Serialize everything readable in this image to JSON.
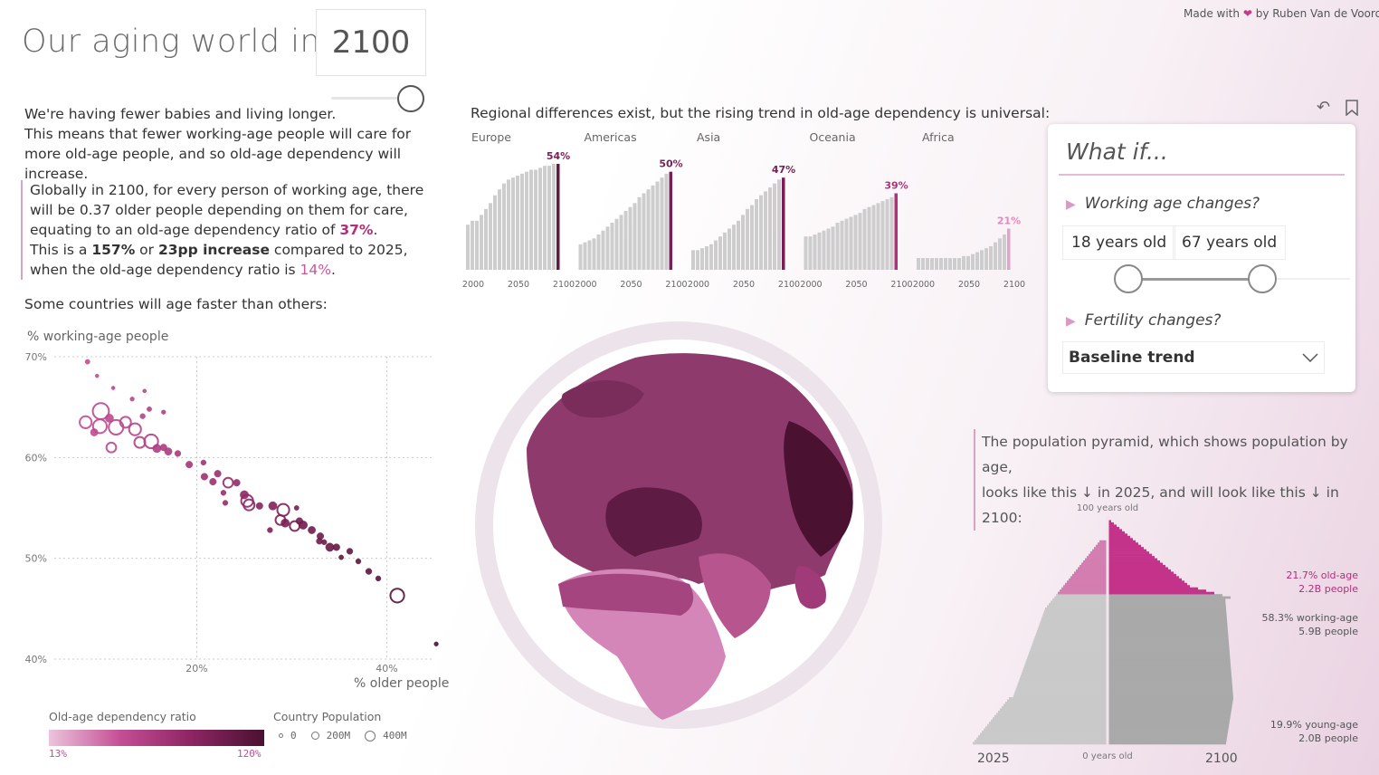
{
  "header": {
    "title": "Our aging world in",
    "year": "2100",
    "credit_prefix": "Made with",
    "credit_suffix": "by Ruben Van de Voorde"
  },
  "year_slider": {
    "value": 2100
  },
  "intro": {
    "line1": "We're having fewer babies and living longer.",
    "line2": "This means that fewer working-age people will care for more old-age people, and so old-age dependency will increase."
  },
  "stat": {
    "p1a": "Globally in 2100, for every person of working age, there will be 0.37 older people depending on them for care, equating to an old-age dependency ratio of ",
    "ratio": "37%",
    "p1b": ".",
    "p2a": "This is a ",
    "pct_increase": "157%",
    "p2b": " or ",
    "pp_increase": "23pp increase",
    "p2c": " compared to 2025, when the old-age dependency ratio is ",
    "ratio_2025": "14%",
    "p2d": "."
  },
  "scatter_intro": "Some countries will age faster than others:",
  "regional_title": "Regional differences exist, but the rising trend in old-age dependency is universal:",
  "pyramid_text": {
    "line1": "The population pyramid, which shows population by age,",
    "line2": "looks like this ↓ in 2025, and will look like this ↓ in 2100:"
  },
  "whatif": {
    "title": "What if...",
    "q1": "Working age changes?",
    "age_min": "18 years old",
    "age_max": "67 years old",
    "q2": "Fertility changes?",
    "fertility_selected": "Baseline trend"
  },
  "legend": {
    "ratio_title": "Old-age dependency ratio",
    "ratio_min": "13%",
    "ratio_max": "120%",
    "pop_title": "Country Population",
    "pop_levels": [
      "0",
      "200M",
      "400M"
    ]
  },
  "colors": {
    "accent": "#b0307a",
    "dark": "#4a1131",
    "light": "#ecc4dc",
    "gray": "#c8c8c8"
  },
  "icons": [
    "heart-icon",
    "undo-icon",
    "bookmark-icon",
    "triangle-right-icon",
    "chevron-down-icon"
  ],
  "chart_data": [
    {
      "type": "bar",
      "title": "Regional differences exist, but the rising trend in old-age dependency is universal:",
      "categories": [
        2000,
        2005,
        2010,
        2015,
        2020,
        2025,
        2030,
        2035,
        2040,
        2045,
        2050,
        2055,
        2060,
        2065,
        2070,
        2075,
        2080,
        2085,
        2090,
        2095,
        2100
      ],
      "xticks": [
        "2000",
        "2050",
        "2100"
      ],
      "series": [
        {
          "name": "Europe",
          "label": "54%",
          "values": [
            23,
            25,
            25,
            28,
            31,
            34,
            38,
            41,
            44,
            46,
            47,
            48,
            49,
            50,
            51,
            51,
            52,
            53,
            53,
            54,
            54
          ]
        },
        {
          "name": "Americas",
          "label": "50%",
          "values": [
            13,
            14,
            15,
            16,
            18,
            20,
            22,
            24,
            26,
            28,
            30,
            32,
            34,
            37,
            39,
            41,
            43,
            45,
            47,
            49,
            50
          ]
        },
        {
          "name": "Asia",
          "label": "47%",
          "values": [
            10,
            10,
            11,
            12,
            13,
            15,
            17,
            19,
            21,
            23,
            25,
            28,
            31,
            33,
            36,
            38,
            40,
            42,
            44,
            46,
            47
          ]
        },
        {
          "name": "Oceania",
          "label": "39%",
          "values": [
            17,
            17,
            18,
            19,
            20,
            21,
            22,
            24,
            25,
            26,
            27,
            28,
            29,
            31,
            32,
            33,
            34,
            35,
            36,
            37,
            39
          ]
        },
        {
          "name": "Africa",
          "label": "21%",
          "values": [
            6,
            6,
            6,
            6,
            6,
            6,
            6,
            6,
            6,
            6,
            7,
            7,
            8,
            9,
            10,
            11,
            12,
            14,
            16,
            18,
            21
          ]
        }
      ],
      "ylim": [
        0,
        60
      ]
    },
    {
      "type": "scatter",
      "xlabel": "% older people",
      "ylabel": "% working-age people",
      "xlim": [
        5,
        45
      ],
      "ylim": [
        40,
        70
      ],
      "xticks": [
        "20%",
        "40%"
      ],
      "yticks": [
        "40%",
        "50%",
        "60%",
        "70%"
      ],
      "points": [
        [
          8.5,
          69.5,
          5,
          0.35
        ],
        [
          9.5,
          68.1,
          3,
          0.35
        ],
        [
          9.9,
          64.6,
          55,
          0.38
        ],
        [
          9.2,
          62.5,
          12,
          0.36
        ],
        [
          8.3,
          63.5,
          30,
          0.35
        ],
        [
          9.8,
          63.1,
          40,
          0.37
        ],
        [
          10.8,
          63.9,
          15,
          0.37
        ],
        [
          11.5,
          63.0,
          45,
          0.39
        ],
        [
          11.0,
          61.0,
          20,
          0.38
        ],
        [
          12.5,
          63.5,
          25,
          0.39
        ],
        [
          13.5,
          62.8,
          30,
          0.42
        ],
        [
          14.0,
          61.5,
          25,
          0.43
        ],
        [
          15.2,
          61.6,
          40,
          0.45
        ],
        [
          15.8,
          60.9,
          15,
          0.46
        ],
        [
          16.5,
          61.0,
          10,
          0.47
        ],
        [
          17.0,
          60.6,
          12,
          0.48
        ],
        [
          18.0,
          60.4,
          8,
          0.5
        ],
        [
          14.3,
          64.1,
          6,
          0.42
        ],
        [
          15.0,
          64.8,
          5,
          0.44
        ],
        [
          13.2,
          65.8,
          4,
          0.41
        ],
        [
          14.5,
          66.6,
          3,
          0.42
        ],
        [
          16.5,
          64.5,
          4,
          0.46
        ],
        [
          11.2,
          66.9,
          3,
          0.37
        ],
        [
          19.2,
          59.3,
          10,
          0.52
        ],
        [
          20.7,
          59.5,
          6,
          0.55
        ],
        [
          20.8,
          58.1,
          10,
          0.56
        ],
        [
          22.2,
          58.4,
          10,
          0.58
        ],
        [
          21.7,
          57.6,
          10,
          0.57
        ],
        [
          23.3,
          57.5,
          20,
          0.6
        ],
        [
          24.2,
          57.5,
          10,
          0.62
        ],
        [
          22.8,
          56.5,
          6,
          0.59
        ],
        [
          23.0,
          55.5,
          6,
          0.6
        ],
        [
          25.0,
          56.3,
          15,
          0.64
        ],
        [
          25.3,
          55.7,
          30,
          0.65
        ],
        [
          25.5,
          55.3,
          25,
          0.66
        ],
        [
          26.6,
          55.2,
          10,
          0.68
        ],
        [
          28.0,
          55.2,
          15,
          0.72
        ],
        [
          29.1,
          54.8,
          30,
          0.75
        ],
        [
          28.8,
          53.8,
          20,
          0.74
        ],
        [
          29.3,
          53.5,
          15,
          0.76
        ],
        [
          30.8,
          53.7,
          10,
          0.79
        ],
        [
          30.3,
          53.2,
          20,
          0.78
        ],
        [
          32.1,
          52.8,
          12,
          0.81
        ],
        [
          31.2,
          53.3,
          15,
          0.8
        ],
        [
          33.0,
          52.2,
          10,
          0.83
        ],
        [
          32.9,
          51.7,
          8,
          0.82
        ],
        [
          34.0,
          51.1,
          15,
          0.85
        ],
        [
          34.7,
          51.1,
          10,
          0.87
        ],
        [
          33.4,
          51.6,
          6,
          0.84
        ],
        [
          36.1,
          50.7,
          8,
          0.89
        ],
        [
          37.0,
          49.7,
          6,
          0.9
        ],
        [
          38.1,
          48.7,
          8,
          0.92
        ],
        [
          39.1,
          48.0,
          6,
          0.93
        ],
        [
          35.2,
          50.1,
          5,
          0.88
        ],
        [
          41.1,
          46.3,
          40,
          0.95
        ],
        [
          45.2,
          41.5,
          4,
          1.0
        ],
        [
          27.7,
          52.8,
          6,
          0.73
        ],
        [
          30.5,
          55.0,
          5,
          0.78
        ]
      ]
    },
    {
      "type": "bar",
      "title": "The population pyramid, which shows population by age,",
      "categories": [
        "2025",
        "2100"
      ],
      "axis_top": "100 years old",
      "axis_bottom": "0 years old",
      "segments_2100": [
        {
          "name": "old-age",
          "share": "21.7% old-age",
          "people": "2.2B people"
        },
        {
          "name": "working-age",
          "share": "58.3% working-age",
          "people": "5.9B people"
        },
        {
          "name": "young-age",
          "share": "19.9% young-age",
          "people": "2.0B people"
        }
      ]
    }
  ]
}
